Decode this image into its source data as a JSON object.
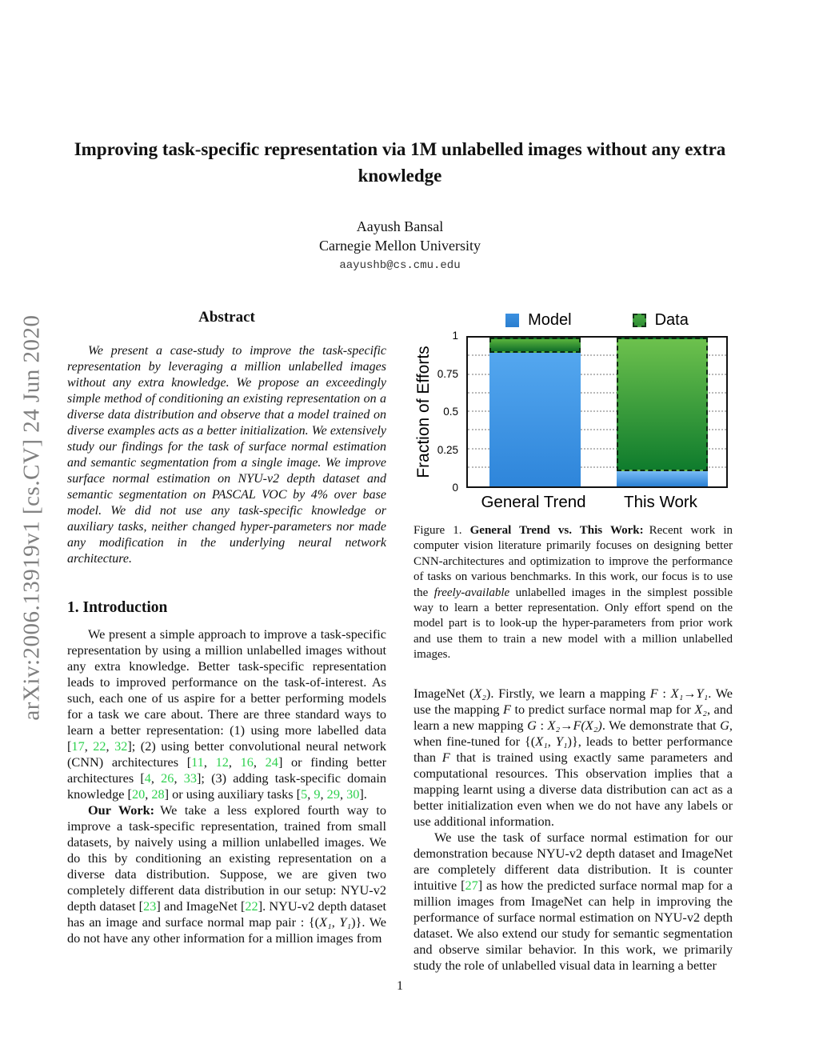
{
  "arxiv_banner": "arXiv:2006.13919v1  [cs.CV]  24 Jun 2020",
  "title": "Improving task-specific representation via 1M unlabelled images without any extra knowledge",
  "author": {
    "name": "Aayush Bansal",
    "affiliation": "Carnegie Mellon University",
    "email": "aayushb@cs.cmu.edu"
  },
  "abstract": {
    "heading": "Abstract",
    "text": "We present a case-study to improve the task-specific representation by leveraging a million unlabelled images without any extra knowledge. We propose an exceedingly simple method of conditioning an existing representation on a diverse data distribution and observe that a model trained on diverse examples acts as a better initialization. We extensively study our findings for the task of surface normal estimation and semantic segmentation from a single image. We improve surface normal estimation on NYU-v2 depth dataset and semantic segmentation on PASCAL VOC by 4% over base model. We did not use any task-specific knowledge or auxiliary tasks, neither changed hyper-parameters nor made any modification in the underlying neural network architecture."
  },
  "introduction": {
    "heading": "1. Introduction",
    "para1_segments": [
      {
        "s": "n",
        "t": "We present a simple approach to improve a task-specific representation by using a million unlabelled images without any extra knowledge. Better task-specific representation leads to improved performance on the task-of-interest. As such, each one of us aspire for a better performing models for a task we care about. There are three standard ways to learn a better representation: (1) using more labelled data ["
      },
      {
        "s": "c",
        "t": "17"
      },
      {
        "s": "n",
        "t": ", "
      },
      {
        "s": "c",
        "t": "22"
      },
      {
        "s": "n",
        "t": ", "
      },
      {
        "s": "c",
        "t": "32"
      },
      {
        "s": "n",
        "t": "]; (2) using better convolutional neural network (CNN) architectures ["
      },
      {
        "s": "c",
        "t": "11"
      },
      {
        "s": "n",
        "t": ", "
      },
      {
        "s": "c",
        "t": "12"
      },
      {
        "s": "n",
        "t": ", "
      },
      {
        "s": "c",
        "t": "16"
      },
      {
        "s": "n",
        "t": ", "
      },
      {
        "s": "c",
        "t": "24"
      },
      {
        "s": "n",
        "t": "] or finding better architectures ["
      },
      {
        "s": "c",
        "t": "4"
      },
      {
        "s": "n",
        "t": ", "
      },
      {
        "s": "c",
        "t": "26"
      },
      {
        "s": "n",
        "t": ", "
      },
      {
        "s": "c",
        "t": "33"
      },
      {
        "s": "n",
        "t": "]; (3) adding task-specific domain knowledge ["
      },
      {
        "s": "c",
        "t": "20"
      },
      {
        "s": "n",
        "t": ", "
      },
      {
        "s": "c",
        "t": "28"
      },
      {
        "s": "n",
        "t": "] or using auxiliary tasks ["
      },
      {
        "s": "c",
        "t": "5"
      },
      {
        "s": "n",
        "t": ", "
      },
      {
        "s": "c",
        "t": "9"
      },
      {
        "s": "n",
        "t": ", "
      },
      {
        "s": "c",
        "t": "29"
      },
      {
        "s": "n",
        "t": ", "
      },
      {
        "s": "c",
        "t": "30"
      },
      {
        "s": "n",
        "t": "]."
      }
    ],
    "para2_segments": [
      {
        "s": "b",
        "t": "Our Work:"
      },
      {
        "s": "n",
        "t": "We take a less explored fourth way to improve a task-specific representation, trained from small datasets, by naively using a million unlabelled images. We do this by conditioning an existing representation on a diverse data distribution. Suppose, we are given two completely different data distribution in our setup: NYU-v2 depth dataset ["
      },
      {
        "s": "c",
        "t": "23"
      },
      {
        "s": "n",
        "t": "] and ImageNet ["
      },
      {
        "s": "c",
        "t": "22"
      },
      {
        "s": "n",
        "t": "]. NYU-v2 depth dataset has an image and surface normal map pair : {("
      },
      {
        "s": "m",
        "t": "X₁"
      },
      {
        "s": "n",
        "t": ", "
      },
      {
        "s": "m",
        "t": "Y₁"
      },
      {
        "s": "n",
        "t": ")}. We do not have any other information for a million images from"
      }
    ]
  },
  "figure": {
    "caption_segments": [
      {
        "s": "n",
        "t": "Figure 1. "
      },
      {
        "s": "b",
        "t": "General Trend vs. This Work:"
      },
      {
        "s": "n",
        "t": "Recent work in computer vision literature primarily focuses on designing better CNN-architectures and optimization to improve the performance of tasks on various benchmarks. In this work, our focus is to use the "
      },
      {
        "s": "i",
        "t": "freely-available"
      },
      {
        "s": "n",
        "t": " unlabelled images in the simplest possible way to learn a better representation. Only effort spend on the model part is to look-up the hyper-parameters from prior work and use them to train a new model with a million unlabelled images."
      }
    ]
  },
  "chart_data": {
    "type": "bar",
    "stacked": true,
    "categories": [
      "General Trend",
      "This Work"
    ],
    "series": [
      {
        "name": "Model",
        "color": "#2e85da",
        "values": [
          0.9,
          0.1
        ]
      },
      {
        "name": "Data",
        "color": "#2f8f34",
        "values": [
          0.1,
          0.9
        ]
      }
    ],
    "title": "",
    "xlabel": "",
    "ylabel": "Fraction of Efforts",
    "ylim": [
      0,
      1
    ],
    "yticks": [
      {
        "v": 0,
        "label": "0"
      },
      {
        "v": 0.25,
        "label": "0.25"
      },
      {
        "v": 0.5,
        "label": "0.5"
      },
      {
        "v": 0.75,
        "label": "0.75"
      },
      {
        "v": 1,
        "label": "1"
      }
    ],
    "gridlines": [
      0.125,
      0.25,
      0.375,
      0.5,
      0.625,
      0.75,
      0.875
    ],
    "grid": "dotted horizontal",
    "legend_position": "top"
  },
  "right_column": {
    "para1_segments": [
      {
        "s": "n",
        "t": "ImageNet ("
      },
      {
        "s": "m",
        "t": "X₂"
      },
      {
        "s": "n",
        "t": "). Firstly, we learn a mapping "
      },
      {
        "s": "m",
        "t": "F"
      },
      {
        "s": "n",
        "t": " : "
      },
      {
        "s": "m",
        "t": "X₁"
      },
      {
        "s": "n",
        "t": "→"
      },
      {
        "s": "m",
        "t": "Y₁"
      },
      {
        "s": "n",
        "t": ". We use the mapping "
      },
      {
        "s": "m",
        "t": "F"
      },
      {
        "s": "n",
        "t": " to predict surface normal map for "
      },
      {
        "s": "m",
        "t": "X₂"
      },
      {
        "s": "n",
        "t": ", and learn a new mapping "
      },
      {
        "s": "m",
        "t": "G"
      },
      {
        "s": "n",
        "t": " : "
      },
      {
        "s": "m",
        "t": "X₂"
      },
      {
        "s": "n",
        "t": "→"
      },
      {
        "s": "m",
        "t": "F(X₂)"
      },
      {
        "s": "n",
        "t": ". We demonstrate that "
      },
      {
        "s": "m",
        "t": "G"
      },
      {
        "s": "n",
        "t": ", when fine-tuned for {("
      },
      {
        "s": "m",
        "t": "X₁"
      },
      {
        "s": "n",
        "t": ", "
      },
      {
        "s": "m",
        "t": "Y₁"
      },
      {
        "s": "n",
        "t": ")}, leads to better performance than "
      },
      {
        "s": "m",
        "t": "F"
      },
      {
        "s": "n",
        "t": " that is trained using exactly same parameters and computational resources. This observation implies that a mapping learnt using a diverse data distribution can act as a better initialization even when we do not have any labels or use additional information."
      }
    ],
    "para2_segments": [
      {
        "s": "n",
        "t": "We use the task of surface normal estimation for our demonstration because NYU-v2 depth dataset and ImageNet are completely different data distribution. It is counter intuitive ["
      },
      {
        "s": "c",
        "t": "27"
      },
      {
        "s": "n",
        "t": "] as how the predicted surface normal map for a million images from ImageNet can help in improving the performance of surface normal estimation on NYU-v2 depth dataset. We also extend our study for semantic segmentation and observe similar behavior. In this work, we primarily study the role of unlabelled visual data in learning a better"
      }
    ]
  },
  "page_number": "1"
}
